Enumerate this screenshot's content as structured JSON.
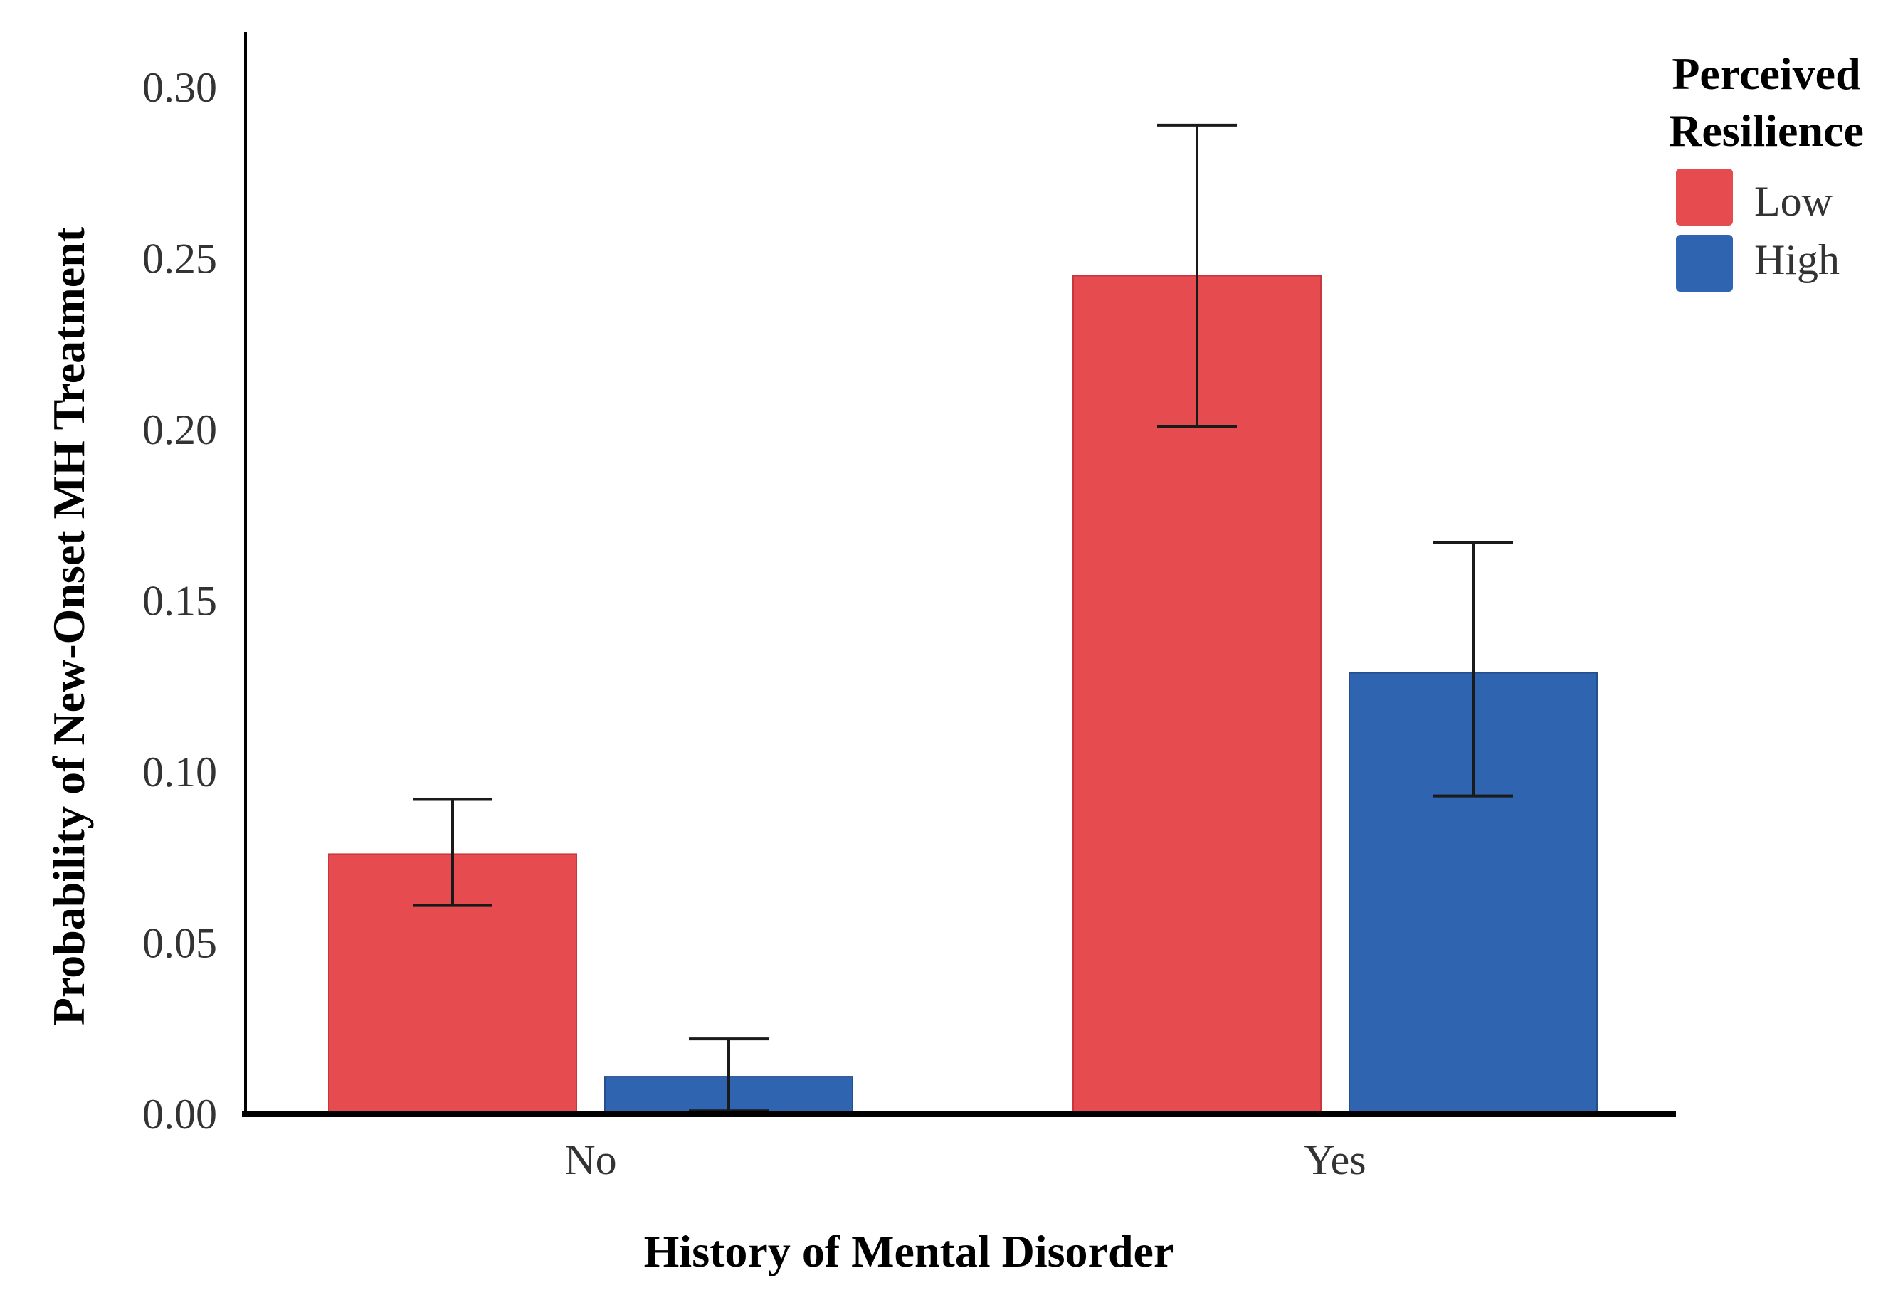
{
  "chart_data": {
    "type": "bar",
    "title": "",
    "xlabel": "History of Mental Disorder",
    "ylabel": "Probability of New-Onset MH Treatment",
    "categories": [
      "No",
      "Yes"
    ],
    "ylim": [
      0,
      0.3
    ],
    "yticks": [
      "0.00",
      "0.05",
      "0.10",
      "0.15",
      "0.20",
      "0.25",
      "0.30"
    ],
    "grid": false,
    "legend": {
      "title_line1": "Perceived",
      "title_line2": "Resilience",
      "position": "top-right"
    },
    "series": [
      {
        "name": "Low",
        "color": "#e64b50",
        "values": [
          0.076,
          0.245
        ],
        "error_low": [
          0.061,
          0.201
        ],
        "error_high": [
          0.092,
          0.289
        ]
      },
      {
        "name": "High",
        "color": "#2f65b0",
        "values": [
          0.011,
          0.129
        ],
        "error_low": [
          0.001,
          0.093
        ],
        "error_high": [
          0.022,
          0.167
        ]
      }
    ]
  }
}
